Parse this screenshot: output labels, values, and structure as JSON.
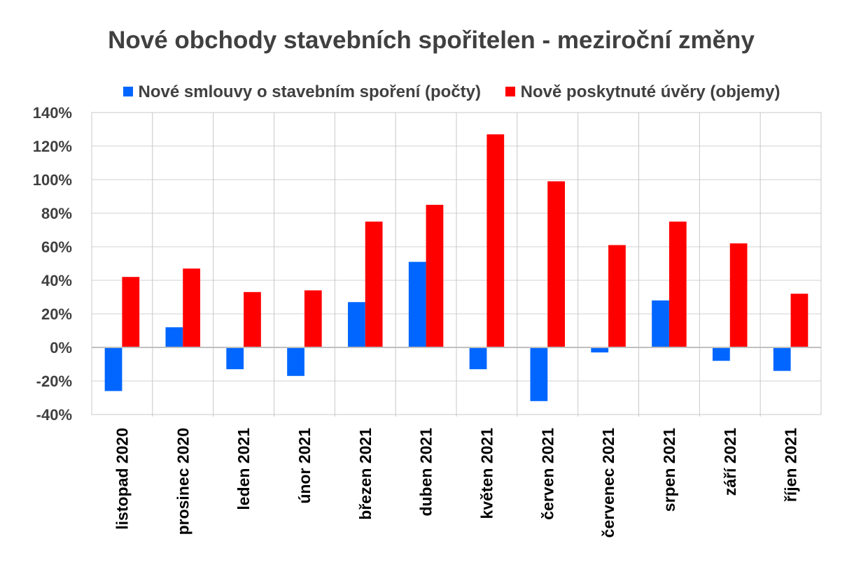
{
  "chart_data": {
    "type": "bar",
    "title": "Nové obchody stavebních spořitelen - meziroční změny",
    "categories": [
      "listopad 2020",
      "prosinec 2020",
      "leden 2021",
      "únor 2021",
      "březen 2021",
      "duben 2021",
      "květen 2021",
      "červen 2021",
      "červenec 2021",
      "srpen 2021",
      "září 2021",
      "říjen 2021"
    ],
    "series": [
      {
        "name": "Nové smlouvy o stavebním spoření (počty)",
        "color": "#0066ff",
        "values": [
          -26,
          12,
          -13,
          -17,
          27,
          51,
          -13,
          -32,
          -3,
          28,
          -8,
          -14
        ]
      },
      {
        "name": "Nově poskytnuté úvěry (objemy)",
        "color": "#ff0000",
        "values": [
          42,
          47,
          33,
          34,
          75,
          85,
          127,
          99,
          61,
          75,
          62,
          32
        ]
      }
    ],
    "ylim": [
      -40,
      140
    ],
    "yticks": [
      140,
      120,
      100,
      80,
      60,
      40,
      20,
      0,
      -20,
      -40
    ],
    "ytick_labels": [
      "140%",
      "120%",
      "100%",
      "80%",
      "60%",
      "40%",
      "20%",
      "0%",
      "-20%",
      "-40%"
    ],
    "grid": true,
    "legend_position": "top",
    "xlabel": "",
    "ylabel": ""
  }
}
